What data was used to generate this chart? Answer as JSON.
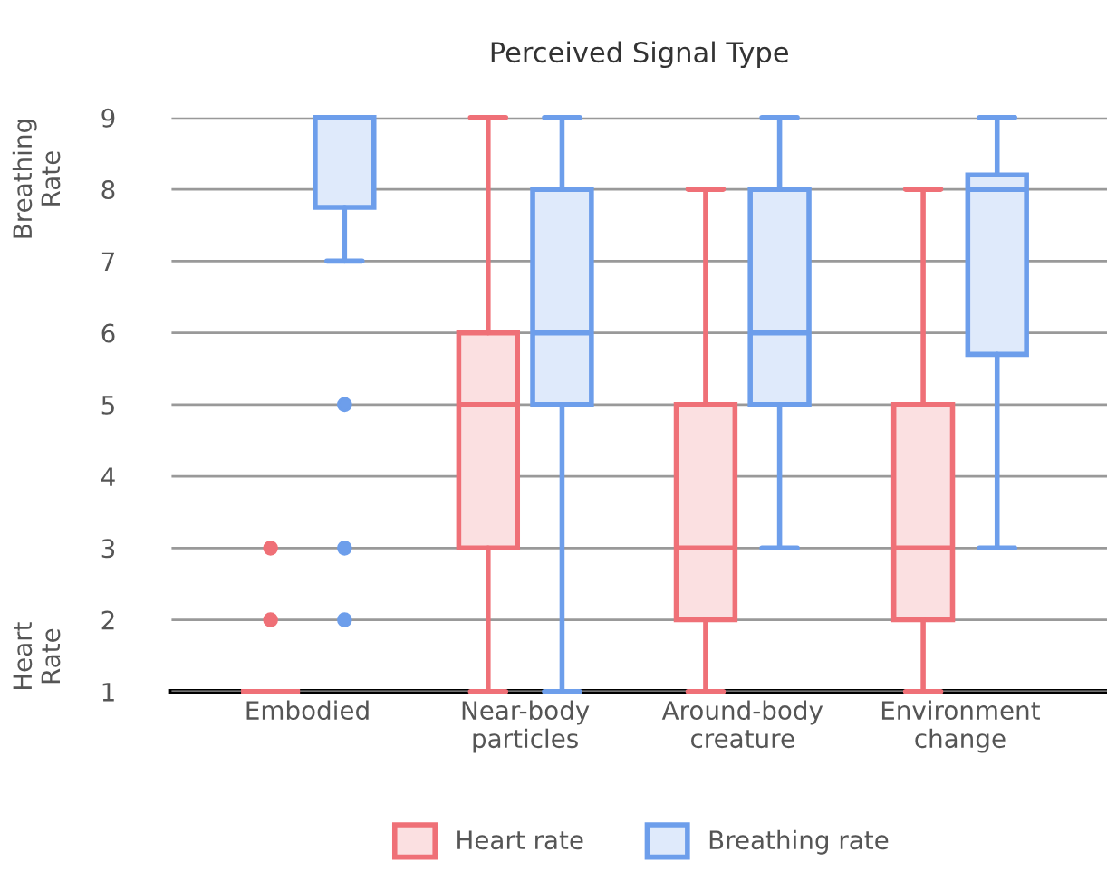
{
  "chart_data": {
    "type": "box",
    "title": "Perceived Signal Type",
    "categories": [
      "Embodied",
      "Near-body\nparticles",
      "Around-body\ncreature",
      "Environment\nchange"
    ],
    "series": [
      {
        "name": "Heart rate",
        "color": "#ef7077",
        "boxes": [
          {
            "low": 1,
            "q1": 1,
            "median": 1,
            "q3": 1,
            "high": 1,
            "outliers": [
              2,
              3
            ]
          },
          {
            "low": 1,
            "q1": 3,
            "median": 5,
            "q3": 6,
            "high": 9
          },
          {
            "low": 1,
            "q1": 2,
            "median": 3,
            "q3": 5,
            "high": 8
          },
          {
            "low": 1,
            "q1": 2,
            "median": 3,
            "q3": 5,
            "high": 8
          }
        ]
      },
      {
        "name": "Breathing rate",
        "color": "#6d9eeb",
        "boxes": [
          {
            "low": 7,
            "q1": 7.75,
            "median": 9,
            "q3": 9,
            "high": 9,
            "outliers": [
              2,
              3,
              5
            ]
          },
          {
            "low": 1,
            "q1": 5,
            "median": 6,
            "q3": 8,
            "high": 9
          },
          {
            "low": 3,
            "q1": 5,
            "median": 6,
            "q3": 8,
            "high": 9
          },
          {
            "low": 3,
            "q1": 5.7,
            "median": 8,
            "q3": 8.2,
            "high": 9
          }
        ]
      }
    ],
    "ylim": [
      1,
      9
    ],
    "yticks": [
      1,
      2,
      3,
      4,
      5,
      6,
      7,
      8,
      9
    ],
    "grid": "y",
    "legend": "bottom",
    "annotations": [
      "Breathing\nRate",
      "Heart\nRate"
    ]
  }
}
